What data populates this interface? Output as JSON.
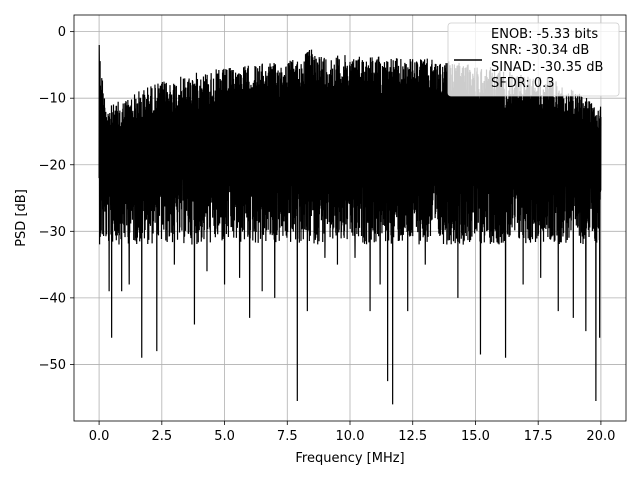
{
  "chart_data": {
    "type": "line",
    "title": "",
    "xlabel": "Frequency [MHz]",
    "ylabel": "PSD [dB]",
    "xlim": [
      -1.0,
      21.0
    ],
    "ylim": [
      -58.5,
      2.5
    ],
    "xticks": [
      0.0,
      2.5,
      5.0,
      7.5,
      10.0,
      12.5,
      15.0,
      17.5,
      20.0
    ],
    "xtick_labels": [
      "0.0",
      "2.5",
      "5.0",
      "7.5",
      "10.0",
      "12.5",
      "15.0",
      "17.5",
      "20.0"
    ],
    "yticks": [
      0,
      -10,
      -20,
      -30,
      -40,
      -50
    ],
    "ytick_labels": [
      "0",
      "−10",
      "−20",
      "−30",
      "−40",
      "−50"
    ],
    "grid": true,
    "legend_position": "upper-right",
    "series": [
      {
        "color": "#000000",
        "x_start": 0.0,
        "x_end": 20.0,
        "upper_envelope": [
          [
            0.0,
            -2
          ],
          [
            0.2,
            -9
          ],
          [
            0.5,
            -11
          ],
          [
            1.0,
            -10
          ],
          [
            1.5,
            -9
          ],
          [
            2.0,
            -8
          ],
          [
            2.5,
            -7.5
          ],
          [
            3.0,
            -7
          ],
          [
            4.0,
            -6
          ],
          [
            5.0,
            -5.5
          ],
          [
            6.0,
            -5
          ],
          [
            7.0,
            -4.5
          ],
          [
            8.0,
            -4
          ],
          [
            8.4,
            -2.5
          ],
          [
            9.0,
            -3.5
          ],
          [
            10.0,
            -3.5
          ],
          [
            11.0,
            -3.5
          ],
          [
            12.0,
            -4
          ],
          [
            13.0,
            -4
          ],
          [
            14.0,
            -4.5
          ],
          [
            15.0,
            -5
          ],
          [
            16.0,
            -5.5
          ],
          [
            17.0,
            -6.5
          ],
          [
            18.0,
            -7
          ],
          [
            19.0,
            -9
          ],
          [
            20.0,
            -10
          ]
        ],
        "band_bottom": -28,
        "deep_dips": [
          [
            0.4,
            -39
          ],
          [
            0.5,
            -46
          ],
          [
            0.9,
            -39
          ],
          [
            1.2,
            -38
          ],
          [
            1.7,
            -49
          ],
          [
            2.3,
            -48
          ],
          [
            3.0,
            -35
          ],
          [
            3.8,
            -44
          ],
          [
            4.3,
            -36
          ],
          [
            5.0,
            -38
          ],
          [
            5.6,
            -37
          ],
          [
            6.0,
            -43
          ],
          [
            6.5,
            -39
          ],
          [
            7.0,
            -40
          ],
          [
            7.9,
            -55.5
          ],
          [
            8.3,
            -42
          ],
          [
            9.0,
            -34
          ],
          [
            9.5,
            -35
          ],
          [
            10.2,
            -34
          ],
          [
            10.8,
            -42
          ],
          [
            11.2,
            -38
          ],
          [
            11.5,
            -52.5
          ],
          [
            11.7,
            -56
          ],
          [
            12.3,
            -42
          ],
          [
            13.0,
            -35
          ],
          [
            14.3,
            -40
          ],
          [
            15.2,
            -48.5
          ],
          [
            16.2,
            -49
          ],
          [
            16.9,
            -38
          ],
          [
            17.6,
            -37
          ],
          [
            18.3,
            -42
          ],
          [
            18.9,
            -43
          ],
          [
            19.4,
            -45
          ],
          [
            19.8,
            -55.5
          ],
          [
            19.95,
            -46
          ]
        ]
      }
    ],
    "legend_lines": [
      "ENOB: -5.33 bits",
      "SNR: -30.34 dB",
      "SINAD: -30.35 dB",
      "SFDR: 0.3"
    ]
  }
}
